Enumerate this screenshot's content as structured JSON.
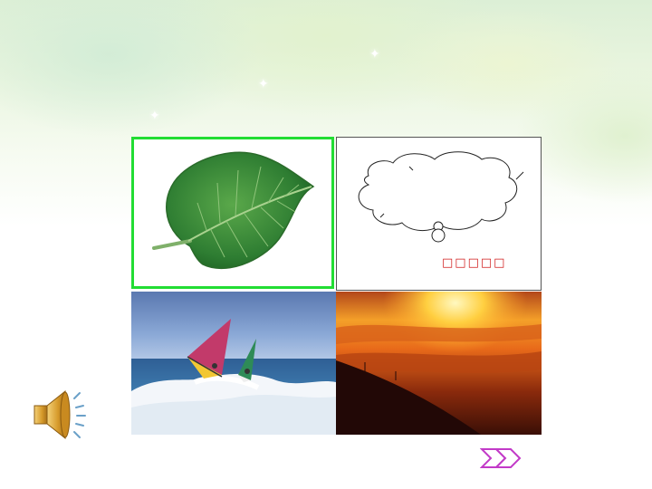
{
  "slide": {
    "panels": [
      {
        "id": "leaf",
        "subject": "green-leaf"
      },
      {
        "id": "thought",
        "subject": "thought-bubble"
      },
      {
        "id": "surf",
        "subject": "windsurfers-on-waves"
      },
      {
        "id": "sunset",
        "subject": "sunset-over-clouds"
      }
    ],
    "thought_caption": "□□□□□",
    "selected_border_color": "#22dd33",
    "caption_color": "#d01a1a"
  },
  "controls": {
    "sound_icon": "speaker-icon",
    "next_icon": "double-arrow-right-icon"
  }
}
